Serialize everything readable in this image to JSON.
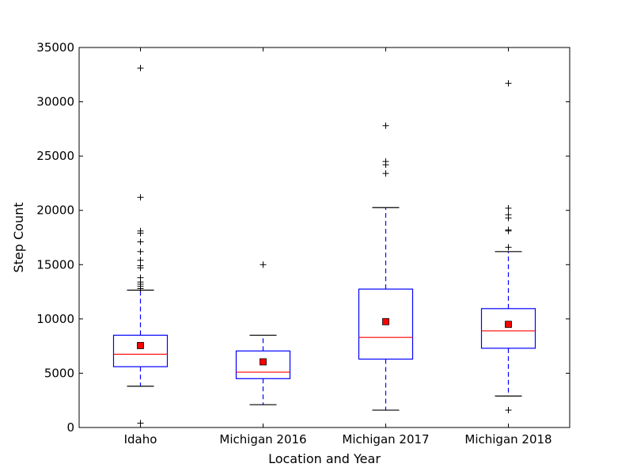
{
  "chart_data": {
    "type": "box",
    "title": "",
    "xlabel": "Location and Year",
    "ylabel": "Step Count",
    "ylim": [
      0,
      35000
    ],
    "yticks": [
      0,
      5000,
      10000,
      15000,
      20000,
      25000,
      30000,
      35000
    ],
    "categories": [
      "Idaho",
      "Michigan 2016",
      "Michigan 2017",
      "Michigan 2018"
    ],
    "boxes": [
      {
        "label": "Idaho",
        "whisker_low": 3800,
        "q1": 5600,
        "median": 6750,
        "q3": 8500,
        "whisker_high": 12650,
        "mean": 7550,
        "outliers": [
          400,
          12800,
          13000,
          13200,
          13400,
          13800,
          14700,
          14900,
          15400,
          16200,
          17100,
          17900,
          18100,
          21200,
          33100
        ]
      },
      {
        "label": "Michigan 2016",
        "whisker_low": 2100,
        "q1": 4500,
        "median": 5100,
        "q3": 7050,
        "whisker_high": 8500,
        "mean": 6050,
        "outliers": [
          15000
        ]
      },
      {
        "label": "Michigan 2017",
        "whisker_low": 1600,
        "q1": 6300,
        "median": 8300,
        "q3": 12750,
        "whisker_high": 20250,
        "mean": 9750,
        "outliers": [
          23400,
          24200,
          24500,
          27800
        ]
      },
      {
        "label": "Michigan 2018",
        "whisker_low": 2900,
        "q1": 7300,
        "median": 8900,
        "q3": 10950,
        "whisker_high": 16200,
        "mean": 9500,
        "outliers": [
          1600,
          16600,
          18100,
          18200,
          19300,
          19600,
          20200,
          31700
        ]
      }
    ],
    "colors": {
      "box": "#0000ff",
      "median": "#ff0000",
      "mean_marker": "#ff0000",
      "whisker_cap": "#000000",
      "flier": "#000000"
    },
    "grid": false,
    "legend": "none"
  }
}
